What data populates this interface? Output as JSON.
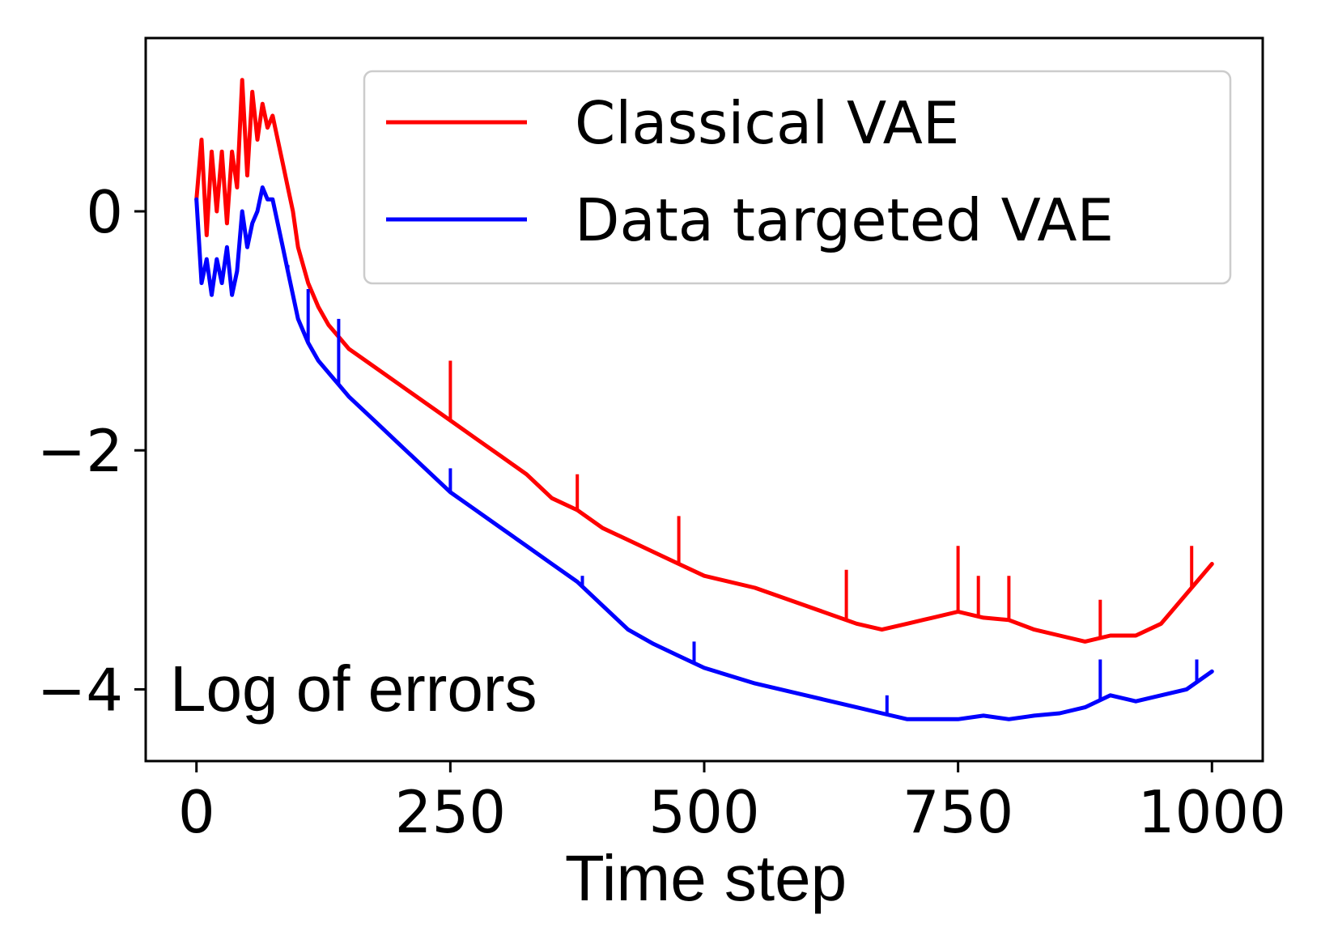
{
  "chart_data": {
    "type": "line",
    "title": "",
    "xlabel": "Time step",
    "ylabel": "",
    "annotation": "Log of errors",
    "xlim": [
      -50,
      1050
    ],
    "ylim": [
      -4.6,
      1.45
    ],
    "x_ticks": [
      0,
      250,
      500,
      750,
      1000
    ],
    "x_tick_labels": [
      "0",
      "250",
      "500",
      "750",
      "1000"
    ],
    "y_ticks": [
      0,
      -2,
      -4
    ],
    "y_tick_labels": [
      "0",
      "−2",
      "−4"
    ],
    "grid": false,
    "legend_position": "top-right",
    "series": [
      {
        "name": "Classical VAE",
        "color": "#ff0000",
        "x": [
          0,
          5,
          10,
          15,
          20,
          25,
          30,
          35,
          40,
          45,
          50,
          55,
          60,
          65,
          70,
          75,
          80,
          85,
          90,
          95,
          100,
          110,
          120,
          130,
          140,
          150,
          175,
          200,
          225,
          250,
          275,
          300,
          325,
          350,
          375,
          400,
          425,
          450,
          475,
          500,
          550,
          600,
          650,
          675,
          700,
          725,
          750,
          775,
          800,
          825,
          850,
          875,
          900,
          925,
          950,
          975,
          1000
        ],
        "y": [
          0.1,
          0.6,
          -0.2,
          0.5,
          0.0,
          0.5,
          -0.1,
          0.5,
          0.2,
          1.1,
          0.3,
          1.0,
          0.6,
          0.9,
          0.7,
          0.8,
          0.6,
          0.4,
          0.2,
          0.0,
          -0.3,
          -0.6,
          -0.8,
          -0.95,
          -1.05,
          -1.15,
          -1.3,
          -1.45,
          -1.6,
          -1.75,
          -1.9,
          -2.05,
          -2.2,
          -2.4,
          -2.5,
          -2.65,
          -2.75,
          -2.85,
          -2.95,
          -3.05,
          -3.15,
          -3.3,
          -3.45,
          -3.5,
          -3.45,
          -3.4,
          -3.35,
          -3.4,
          -3.42,
          -3.5,
          -3.55,
          -3.6,
          -3.55,
          -3.55,
          -3.45,
          -3.2,
          -2.95
        ],
        "spikes": [
          {
            "x": 250,
            "y": -1.25
          },
          {
            "x": 375,
            "y": -2.2
          },
          {
            "x": 475,
            "y": -2.55
          },
          {
            "x": 640,
            "y": -3.0
          },
          {
            "x": 750,
            "y": -2.8
          },
          {
            "x": 770,
            "y": -3.05
          },
          {
            "x": 800,
            "y": -3.05
          },
          {
            "x": 890,
            "y": -3.25
          },
          {
            "x": 980,
            "y": -2.8
          }
        ]
      },
      {
        "name": "Data targeted VAE",
        "color": "#0000ff",
        "x": [
          0,
          5,
          10,
          15,
          20,
          25,
          30,
          35,
          40,
          45,
          50,
          55,
          60,
          65,
          70,
          75,
          80,
          85,
          90,
          95,
          100,
          110,
          120,
          130,
          140,
          150,
          175,
          200,
          225,
          250,
          275,
          300,
          325,
          350,
          375,
          400,
          425,
          450,
          475,
          500,
          550,
          600,
          650,
          675,
          700,
          725,
          750,
          775,
          800,
          825,
          850,
          875,
          900,
          925,
          950,
          975,
          1000
        ],
        "y": [
          0.1,
          -0.6,
          -0.4,
          -0.7,
          -0.4,
          -0.6,
          -0.3,
          -0.7,
          -0.5,
          0.0,
          -0.3,
          -0.1,
          0.0,
          0.2,
          0.1,
          0.1,
          -0.1,
          -0.3,
          -0.5,
          -0.7,
          -0.9,
          -1.1,
          -1.25,
          -1.35,
          -1.45,
          -1.55,
          -1.75,
          -1.95,
          -2.15,
          -2.35,
          -2.5,
          -2.65,
          -2.8,
          -2.95,
          -3.1,
          -3.3,
          -3.5,
          -3.62,
          -3.72,
          -3.82,
          -3.95,
          -4.05,
          -4.15,
          -4.2,
          -4.25,
          -4.25,
          -4.25,
          -4.22,
          -4.25,
          -4.22,
          -4.2,
          -4.15,
          -4.05,
          -4.1,
          -4.05,
          -4.0,
          -3.85
        ],
        "spikes": [
          {
            "x": 90,
            "y": -0.45
          },
          {
            "x": 110,
            "y": -0.65
          },
          {
            "x": 140,
            "y": -0.9
          },
          {
            "x": 250,
            "y": -2.15
          },
          {
            "x": 380,
            "y": -3.05
          },
          {
            "x": 490,
            "y": -3.6
          },
          {
            "x": 680,
            "y": -4.05
          },
          {
            "x": 890,
            "y": -3.75
          },
          {
            "x": 985,
            "y": -3.75
          }
        ]
      }
    ]
  }
}
